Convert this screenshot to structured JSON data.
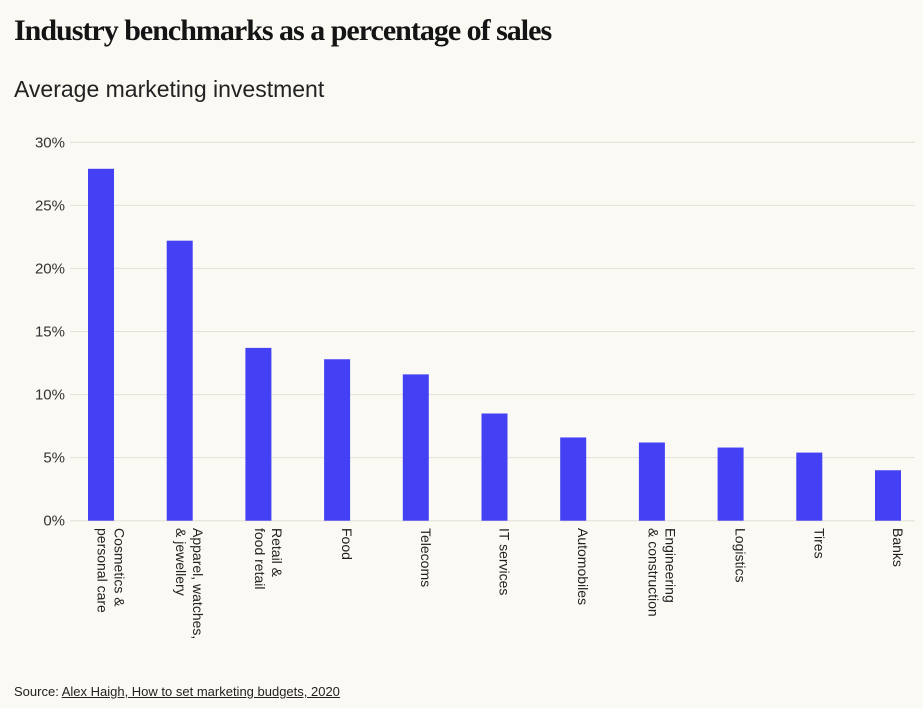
{
  "chart_data": {
    "type": "bar",
    "title": "Industry benchmarks as a percentage of sales",
    "subtitle": "Average marketing investment",
    "xlabel": "",
    "ylabel": "",
    "ylim": [
      0,
      30
    ],
    "yticks": [
      "0%",
      "5%",
      "10%",
      "15%",
      "20%",
      "25%",
      "30%"
    ],
    "grid": true,
    "bar_color": "#4440f4",
    "categories": [
      [
        "Cosmetics &",
        "personal care"
      ],
      [
        "Apparel, watches,",
        "& jewellery"
      ],
      [
        "Retail &",
        "food retail"
      ],
      [
        "Food"
      ],
      [
        "Telecoms"
      ],
      [
        "IT services"
      ],
      [
        "Automobiles"
      ],
      [
        "Engineering",
        "& construction"
      ],
      [
        "Logistics"
      ],
      [
        "Tires"
      ],
      [
        "Banks"
      ]
    ],
    "values": [
      27.9,
      22.2,
      13.7,
      12.8,
      11.6,
      8.5,
      6.6,
      6.2,
      5.8,
      5.4,
      4.0
    ]
  },
  "source": {
    "prefix": "Source: ",
    "link_text": "Alex Haigh, How to set marketing budgets, 2020"
  }
}
